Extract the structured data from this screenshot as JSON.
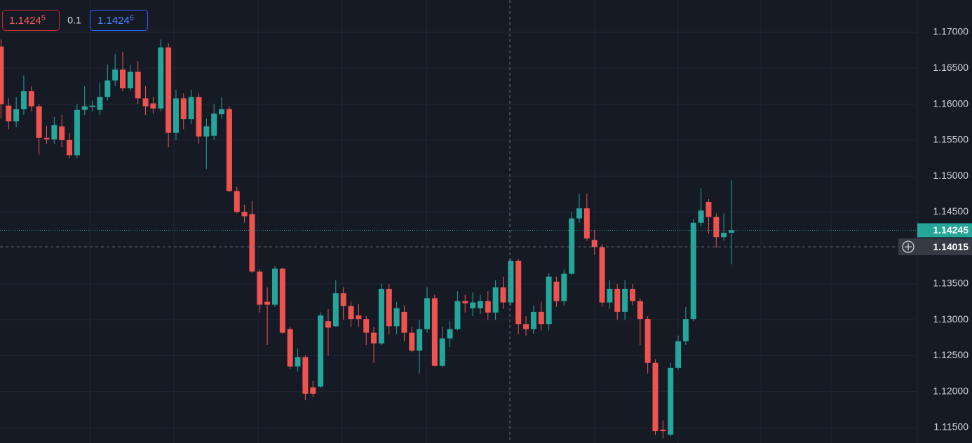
{
  "header": {
    "sell": {
      "price": "1.1424",
      "pip": "5"
    },
    "spread": "0.1",
    "buy": {
      "price": "1.1424",
      "pip": "6"
    }
  },
  "chart_data": {
    "type": "candlestick",
    "up_color": "#26a69a",
    "down_color": "#ef5350",
    "grid": true,
    "ylim": [
      1.11285,
      1.17449
    ],
    "yticks": [
      {
        "value": 1.17,
        "label": "1.17000"
      },
      {
        "value": 1.165,
        "label": "1.16500"
      },
      {
        "value": 1.16,
        "label": "1.16000"
      },
      {
        "value": 1.155,
        "label": "1.15500"
      },
      {
        "value": 1.15,
        "label": "1.15000"
      },
      {
        "value": 1.145,
        "label": "1.14500"
      },
      {
        "value": 1.135,
        "label": "1.13500"
      },
      {
        "value": 1.13,
        "label": "1.13000"
      },
      {
        "value": 1.125,
        "label": "1.12500"
      },
      {
        "value": 1.12,
        "label": "1.12000"
      },
      {
        "value": 1.115,
        "label": "1.11500"
      }
    ],
    "last_price": {
      "value": 1.14245,
      "label": "1.14245"
    },
    "crosshair": {
      "value": 1.14015,
      "label": "1.14015"
    },
    "open": [
      1.168,
      1.1598,
      1.1576,
      1.1593,
      1.1618,
      1.1597,
      1.1553,
      1.1551,
      1.1569,
      1.155,
      1.1529,
      1.1592,
      1.1596,
      1.1592,
      1.161,
      1.1633,
      1.1648,
      1.1622,
      1.1645,
      1.1608,
      1.1601,
      1.1594,
      1.1679,
      1.156,
      1.1608,
      1.1579,
      1.161,
      1.1555,
      1.1556,
      1.1586,
      1.1593,
      1.1479,
      1.145,
      1.1447,
      1.1367,
      1.1325,
      1.1321,
      1.1371,
      1.1287,
      1.1235,
      1.1248,
      1.1206,
      1.1207,
      1.1298,
      1.1291,
      1.1337,
      1.1319,
      1.1306,
      1.1301,
      1.1282,
      1.1267,
      1.1343,
      1.1291,
      1.1311,
      1.1282,
      1.1257,
      1.1287,
      1.133,
      1.1236,
      1.1274,
      1.1287,
      1.1326,
      1.1316,
      1.1316,
      1.1326,
      1.131,
      1.1345,
      1.1324,
      1.1382,
      1.1294,
      1.1287,
      1.1311,
      1.1294,
      1.1353,
      1.1326,
      1.1364,
      1.1441,
      1.1455,
      1.1411,
      1.1401,
      1.1324,
      1.1343,
      1.1311,
      1.1343,
      1.1326,
      1.1301,
      1.124,
      1.1147,
      1.114,
      1.1233,
      1.127,
      1.1301,
      1.1435,
      1.1464,
      1.1443,
      1.1415,
      1.1421
    ],
    "high": [
      1.169,
      1.1608,
      1.161,
      1.164,
      1.1625,
      1.16,
      1.157,
      1.1582,
      1.1585,
      1.156,
      1.16,
      1.1625,
      1.1605,
      1.163,
      1.1655,
      1.167,
      1.1673,
      1.1655,
      1.166,
      1.1625,
      1.161,
      1.169,
      1.1685,
      1.162,
      1.1615,
      1.162,
      1.1615,
      1.158,
      1.16,
      1.161,
      1.1597,
      1.1485,
      1.146,
      1.1465,
      1.137,
      1.1345,
      1.1375,
      1.1372,
      1.129,
      1.126,
      1.125,
      1.1215,
      1.131,
      1.1315,
      1.1355,
      1.1345,
      1.1325,
      1.1322,
      1.1305,
      1.129,
      1.135,
      1.135,
      1.1325,
      1.132,
      1.129,
      1.13,
      1.1345,
      1.1335,
      1.129,
      1.1298,
      1.134,
      1.1335,
      1.1338,
      1.1335,
      1.134,
      1.1355,
      1.136,
      1.1385,
      1.1385,
      1.1305,
      1.132,
      1.1325,
      1.1365,
      1.136,
      1.137,
      1.145,
      1.1475,
      1.1475,
      1.1425,
      1.1405,
      1.1355,
      1.135,
      1.1355,
      1.135,
      1.133,
      1.1305,
      1.1245,
      1.116,
      1.124,
      1.1278,
      1.1318,
      1.144,
      1.1483,
      1.1468,
      1.1448,
      1.1448,
      1.1494
    ],
    "low": [
      1.158,
      1.1565,
      1.1568,
      1.1585,
      1.159,
      1.153,
      1.1545,
      1.1545,
      1.154,
      1.1525,
      1.1525,
      1.1585,
      1.159,
      1.1585,
      1.1605,
      1.1625,
      1.1618,
      1.1618,
      1.16,
      1.1585,
      1.1587,
      1.159,
      1.154,
      1.155,
      1.1565,
      1.1572,
      1.1545,
      1.151,
      1.155,
      1.158,
      1.1478,
      1.1448,
      1.1435,
      1.1365,
      1.131,
      1.1265,
      1.1318,
      1.128,
      1.1232,
      1.1228,
      1.1188,
      1.1193,
      1.1205,
      1.125,
      1.129,
      1.13,
      1.129,
      1.129,
      1.1265,
      1.124,
      1.1265,
      1.128,
      1.128,
      1.127,
      1.1255,
      1.1225,
      1.1282,
      1.1235,
      1.1234,
      1.1262,
      1.1285,
      1.131,
      1.1305,
      1.1308,
      1.13,
      1.13,
      1.1315,
      1.132,
      1.128,
      1.1278,
      1.128,
      1.1285,
      1.1285,
      1.1318,
      1.132,
      1.1362,
      1.1435,
      1.141,
      1.139,
      1.1318,
      1.1315,
      1.13,
      1.13,
      1.132,
      1.1265,
      1.1225,
      1.114,
      1.1135,
      1.1138,
      1.123,
      1.1265,
      1.1298,
      1.143,
      1.142,
      1.14,
      1.141,
      1.1377
    ],
    "close": [
      1.16,
      1.1576,
      1.1593,
      1.1618,
      1.1597,
      1.1553,
      1.1551,
      1.1571,
      1.155,
      1.1529,
      1.1592,
      1.1597,
      1.1598,
      1.161,
      1.1633,
      1.1648,
      1.1622,
      1.1645,
      1.1608,
      1.1597,
      1.1594,
      1.1679,
      1.156,
      1.1608,
      1.1579,
      1.161,
      1.1555,
      1.1569,
      1.1587,
      1.1593,
      1.1479,
      1.145,
      1.1444,
      1.1367,
      1.1321,
      1.1321,
      1.1371,
      1.1282,
      1.1235,
      1.1248,
      1.1197,
      1.1197,
      1.1306,
      1.1289,
      1.1337,
      1.1319,
      1.1301,
      1.1301,
      1.1282,
      1.1267,
      1.1343,
      1.1291,
      1.1316,
      1.1282,
      1.1257,
      1.1287,
      1.133,
      1.1236,
      1.1274,
      1.1287,
      1.1326,
      1.1323,
      1.1324,
      1.1326,
      1.131,
      1.1345,
      1.1324,
      1.1382,
      1.1294,
      1.1287,
      1.1311,
      1.1294,
      1.136,
      1.1326,
      1.1364,
      1.1441,
      1.1455,
      1.1413,
      1.1401,
      1.1324,
      1.1343,
      1.1311,
      1.1343,
      1.1326,
      1.1301,
      1.124,
      1.1145,
      1.1145,
      1.1233,
      1.127,
      1.1301,
      1.1435,
      1.1452,
      1.1443,
      1.1415,
      1.1421,
      1.14245
    ]
  }
}
